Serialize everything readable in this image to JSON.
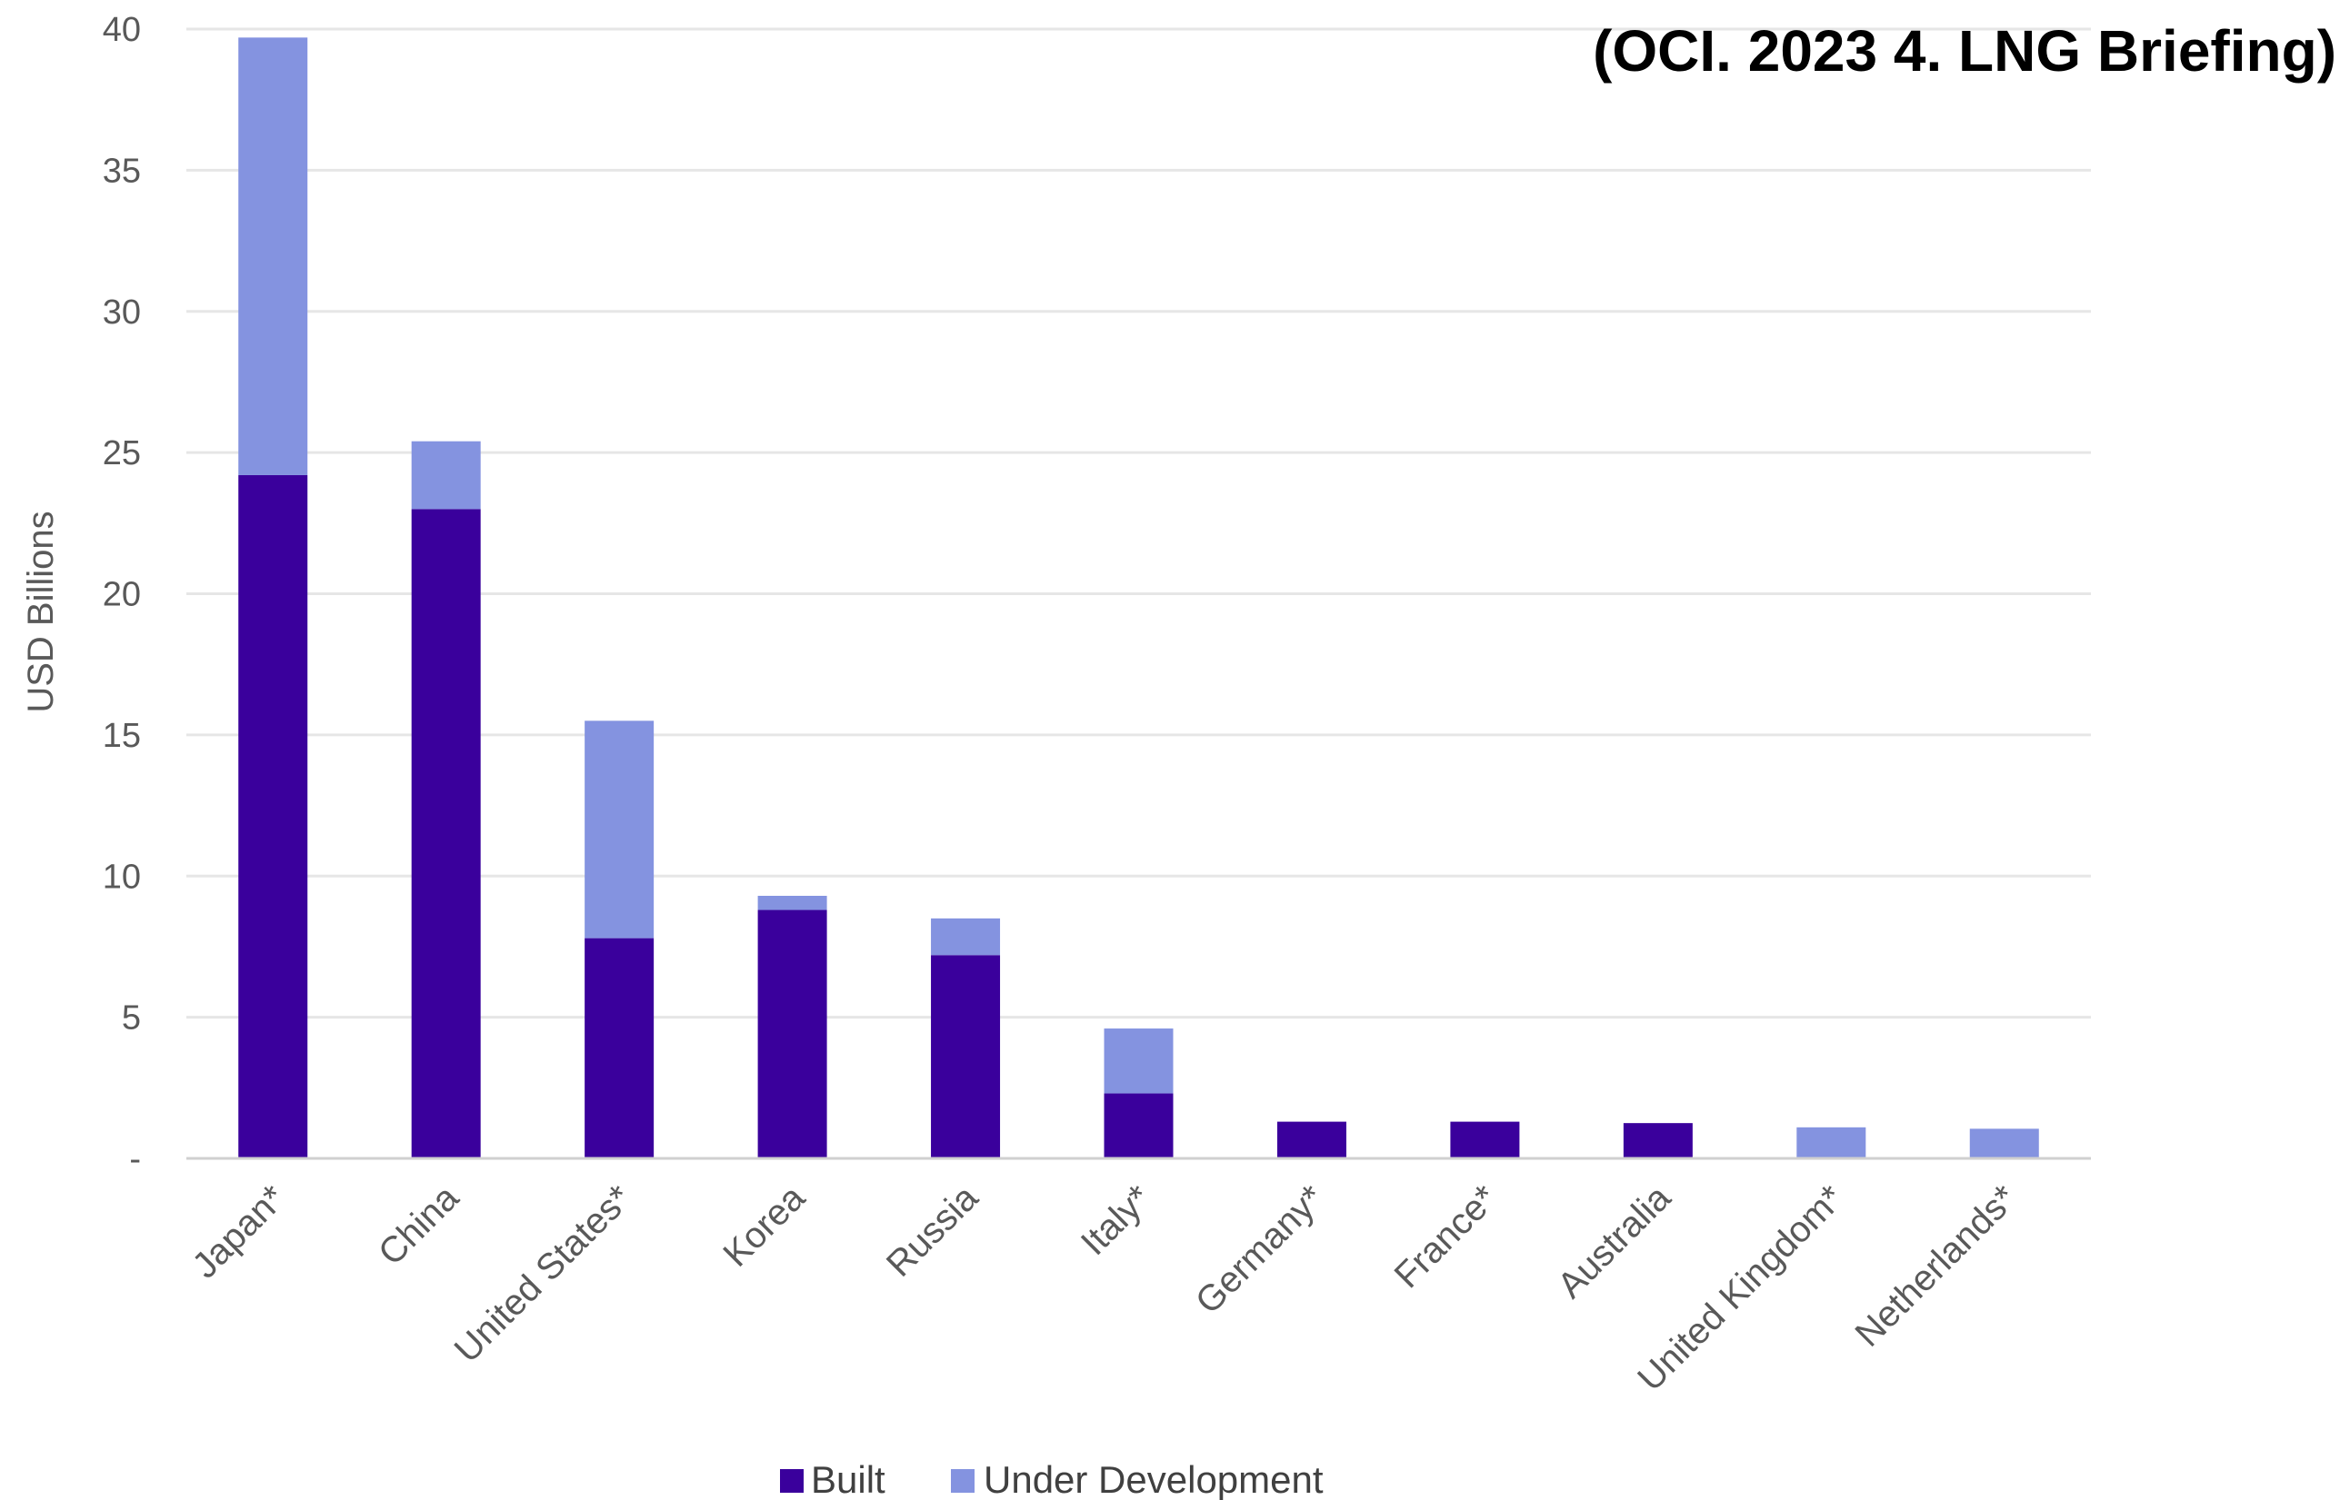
{
  "source_note": "(OCI. 2023 4. LNG Briefing)",
  "colors": {
    "built": "#3a009c",
    "under_development": "#8493e0",
    "grid": "#e6e6e6",
    "axis": "#d0d0d0"
  },
  "chart_data": {
    "type": "bar",
    "stacked": true,
    "title": "",
    "xlabel": "",
    "ylabel": "USD Billions",
    "ylim": [
      0,
      40
    ],
    "yticks": [
      0,
      5,
      10,
      15,
      20,
      25,
      30,
      35,
      40
    ],
    "ytick_labels": [
      "-",
      "5",
      "10",
      "15",
      "20",
      "25",
      "30",
      "35",
      "40"
    ],
    "grid": true,
    "legend_position": "bottom",
    "categories": [
      "Japan*",
      "China",
      "United States*",
      "Korea",
      "Russia",
      "Italy*",
      "Germany*",
      "France*",
      "Australia",
      "United Kingdom*",
      "Netherlands*"
    ],
    "series": [
      {
        "name": "Built",
        "values": [
          24.2,
          23.0,
          7.8,
          8.8,
          7.2,
          2.3,
          1.3,
          1.3,
          1.25,
          0,
          0
        ]
      },
      {
        "name": "Under Development",
        "values": [
          15.5,
          2.4,
          7.7,
          0.5,
          1.3,
          2.3,
          0,
          0,
          0,
          1.1,
          1.05
        ]
      }
    ]
  }
}
